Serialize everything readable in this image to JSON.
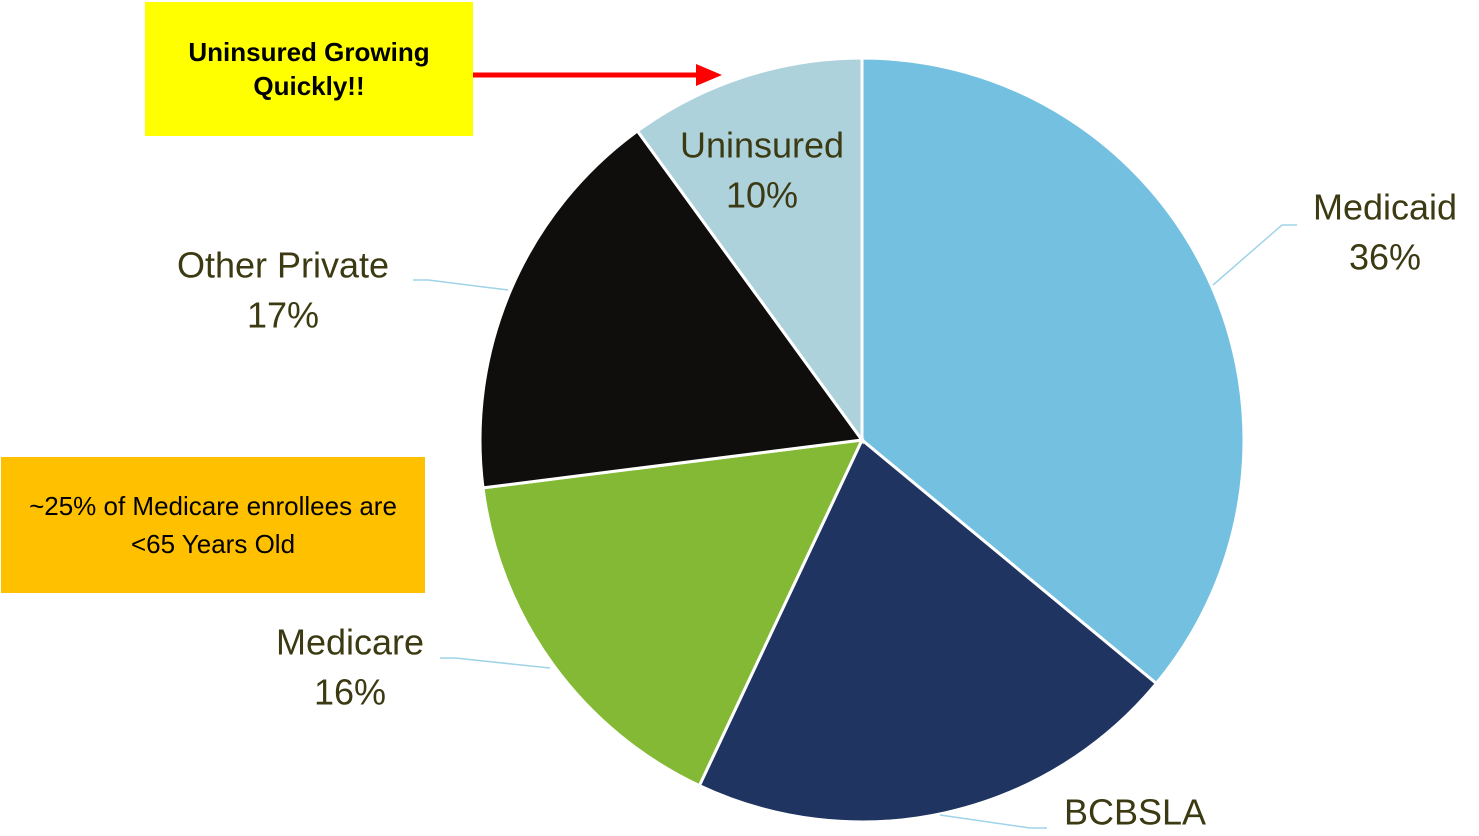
{
  "chart_data": {
    "type": "pie",
    "categories": [
      "Medicaid",
      "BCBSLA",
      "Medicare",
      "Other Private",
      "Uninsured"
    ],
    "values": [
      36,
      21,
      16,
      17,
      10
    ],
    "value_labels": [
      "36%",
      null,
      "16%",
      "17%",
      "10%"
    ],
    "colors": [
      "#74c0e0",
      "#1f3460",
      "#84b935",
      "#100e0c",
      "#aed2dc"
    ],
    "annotations": [
      "Uninsured Growing Quickly!!",
      "~25% of Medicare enrollees are <65 Years Old"
    ]
  }
}
